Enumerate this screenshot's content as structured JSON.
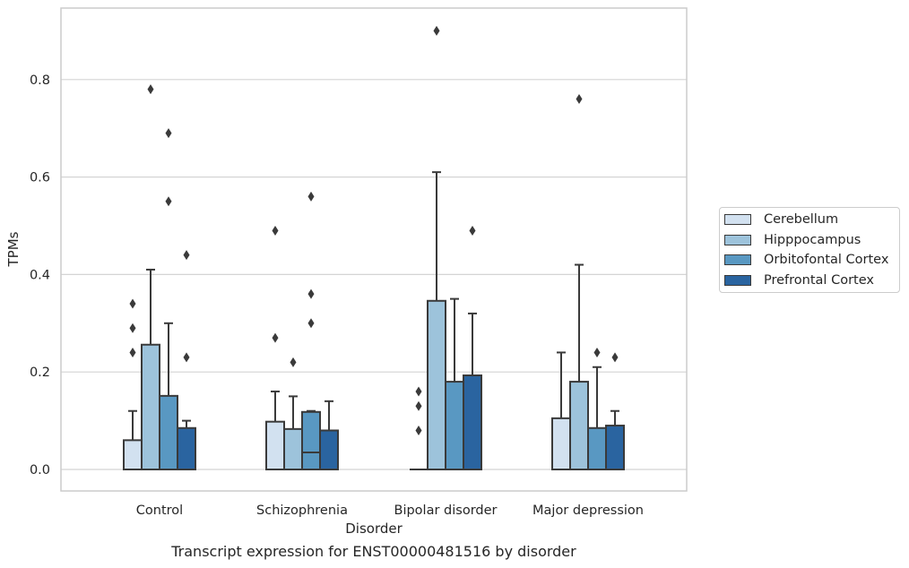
{
  "caption": "Transcript expression for ENST00000481516 by disorder",
  "chart_data": {
    "type": "box",
    "xlabel": "Disorder",
    "ylabel": "TPMs",
    "ylim": [
      -0.04,
      0.95
    ],
    "yticks": [
      0.0,
      0.2,
      0.4,
      0.6,
      0.8
    ],
    "ytick_labels": [
      "0.0",
      "0.2",
      "0.4",
      "0.6",
      "0.8"
    ],
    "grid": "horizontal",
    "legend_position": "right",
    "categories": [
      "Control",
      "Schizophrenia",
      "Bipolar disorder",
      "Major depression"
    ],
    "series": [
      {
        "name": "Cerebellum",
        "color": "#d2e1f0",
        "boxes": [
          {
            "q1": 0.0,
            "median": 0.0,
            "q3": 0.06,
            "whisker_low": 0.0,
            "whisker_high": 0.12,
            "outliers": [
              0.24,
              0.29,
              0.34
            ]
          },
          {
            "q1": 0.0,
            "median": 0.0,
            "q3": 0.098,
            "whisker_low": 0.0,
            "whisker_high": 0.16,
            "outliers": [
              0.27,
              0.49
            ]
          },
          {
            "q1": 0.0,
            "median": 0.0,
            "q3": 0.0,
            "whisker_low": 0.0,
            "whisker_high": 0.0,
            "outliers": [
              0.08,
              0.13,
              0.16
            ]
          },
          {
            "q1": 0.0,
            "median": 0.0,
            "q3": 0.105,
            "whisker_low": 0.0,
            "whisker_high": 0.24,
            "outliers": []
          }
        ]
      },
      {
        "name": "Hipppocampus",
        "color": "#9dc3db",
        "boxes": [
          {
            "q1": 0.0,
            "median": 0.0,
            "q3": 0.256,
            "whisker_low": 0.0,
            "whisker_high": 0.41,
            "outliers": [
              0.78
            ]
          },
          {
            "q1": 0.0,
            "median": 0.0,
            "q3": 0.083,
            "whisker_low": 0.0,
            "whisker_high": 0.15,
            "outliers": [
              0.22
            ]
          },
          {
            "q1": 0.0,
            "median": 0.0,
            "q3": 0.346,
            "whisker_low": 0.0,
            "whisker_high": 0.61,
            "outliers": [
              0.9
            ]
          },
          {
            "q1": 0.0,
            "median": 0.0,
            "q3": 0.18,
            "whisker_low": 0.0,
            "whisker_high": 0.42,
            "outliers": [
              0.76
            ]
          }
        ]
      },
      {
        "name": "Orbitofontal Cortex",
        "color": "#5998c2",
        "boxes": [
          {
            "q1": 0.0,
            "median": 0.0,
            "q3": 0.151,
            "whisker_low": 0.0,
            "whisker_high": 0.3,
            "outliers": [
              0.55,
              0.69
            ]
          },
          {
            "q1": 0.0,
            "median": 0.035,
            "q3": 0.118,
            "whisker_low": 0.0,
            "whisker_high": 0.12,
            "outliers": [
              0.3,
              0.36,
              0.56
            ]
          },
          {
            "q1": 0.0,
            "median": 0.0,
            "q3": 0.18,
            "whisker_low": 0.0,
            "whisker_high": 0.35,
            "outliers": []
          },
          {
            "q1": 0.0,
            "median": 0.0,
            "q3": 0.085,
            "whisker_low": 0.0,
            "whisker_high": 0.21,
            "outliers": [
              0.24
            ]
          }
        ]
      },
      {
        "name": "Prefrontal Cortex",
        "color": "#2a64a0",
        "boxes": [
          {
            "q1": 0.0,
            "median": 0.0,
            "q3": 0.085,
            "whisker_low": 0.0,
            "whisker_high": 0.1,
            "outliers": [
              0.23,
              0.44
            ]
          },
          {
            "q1": 0.0,
            "median": 0.0,
            "q3": 0.08,
            "whisker_low": 0.0,
            "whisker_high": 0.14,
            "outliers": []
          },
          {
            "q1": 0.0,
            "median": 0.0,
            "q3": 0.193,
            "whisker_low": 0.0,
            "whisker_high": 0.32,
            "outliers": [
              0.49
            ]
          },
          {
            "q1": 0.0,
            "median": 0.0,
            "q3": 0.09,
            "whisker_low": 0.0,
            "whisker_high": 0.12,
            "outliers": [
              0.23
            ]
          }
        ]
      }
    ]
  }
}
